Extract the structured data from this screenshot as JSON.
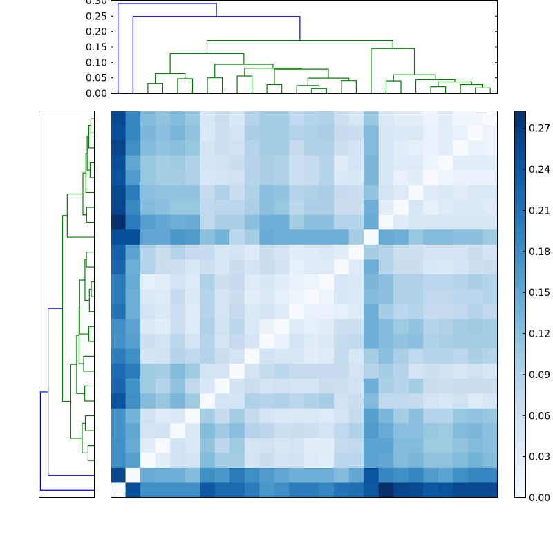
{
  "chart_data": {
    "type": "heatmap",
    "title": "",
    "description_kind": "clustered distance heatmap with dendrograms",
    "colormap": "Blues",
    "vmin": 0.0,
    "vmax": 0.283,
    "colorbar": {
      "ticks": [
        0.0,
        0.03,
        0.06,
        0.09,
        0.12,
        0.15,
        0.18,
        0.21,
        0.24,
        0.27
      ],
      "tick_labels": [
        "0.00",
        "0.03",
        "0.06",
        "0.09",
        "0.12",
        "0.15",
        "0.18",
        "0.21",
        "0.24",
        "0.27"
      ]
    },
    "top_dendrogram": {
      "ylim": [
        0.0,
        0.3
      ],
      "ticks": [
        0.0,
        0.05,
        0.1,
        0.15,
        0.2,
        0.25,
        0.3
      ],
      "tick_labels": [
        "0.00",
        "0.05",
        "0.10",
        "0.15",
        "0.20",
        "0.25",
        "0.30"
      ]
    },
    "dendrogram": {
      "n_leaves": 26,
      "color_threshold": 0.2,
      "below_color": "#008000",
      "above_color": "#0000ff",
      "linkage": [
        [
          24,
          25,
          0.017
        ],
        [
          23,
          26,
          0.028
        ],
        [
          21,
          22,
          0.021
        ],
        [
          28,
          27,
          0.037
        ],
        [
          20,
          29,
          0.044
        ],
        [
          18,
          19,
          0.04
        ],
        [
          31,
          30,
          0.06
        ],
        [
          17,
          32,
          0.145
        ],
        [
          13,
          14,
          0.015
        ],
        [
          12,
          34,
          0.025
        ],
        [
          15,
          16,
          0.041
        ],
        [
          35,
          36,
          0.049
        ],
        [
          10,
          11,
          0.028
        ],
        [
          38,
          37,
          0.078
        ],
        [
          8,
          9,
          0.056
        ],
        [
          40,
          39,
          0.081
        ],
        [
          6,
          7,
          0.05
        ],
        [
          42,
          41,
          0.094
        ],
        [
          2,
          3,
          0.032
        ],
        [
          4,
          5,
          0.047
        ],
        [
          44,
          45,
          0.064
        ],
        [
          46,
          43,
          0.129
        ],
        [
          47,
          33,
          0.171
        ],
        [
          1,
          48,
          0.249
        ],
        [
          0,
          49,
          0.291
        ]
      ]
    },
    "matrix_rows_top_to_bottom": [
      [
        0.255,
        0.19,
        0.125,
        0.115,
        0.125,
        0.11,
        0.045,
        0.065,
        0.045,
        0.085,
        0.1,
        0.1,
        0.075,
        0.085,
        0.09,
        0.06,
        0.045,
        0.11,
        0.04,
        0.03,
        0.03,
        0.015,
        0.03,
        0.012,
        0.012,
        0
      ],
      [
        0.25,
        0.19,
        0.13,
        0.12,
        0.13,
        0.115,
        0.04,
        0.06,
        0.05,
        0.095,
        0.1,
        0.1,
        0.085,
        0.09,
        0.095,
        0.07,
        0.065,
        0.125,
        0.045,
        0.04,
        0.04,
        0.02,
        0.03,
        0.02,
        0,
        0.015
      ],
      [
        0.26,
        0.18,
        0.125,
        0.115,
        0.12,
        0.11,
        0.05,
        0.06,
        0.055,
        0.085,
        0.1,
        0.1,
        0.07,
        0.09,
        0.09,
        0.06,
        0.05,
        0.125,
        0.045,
        0.03,
        0.025,
        0.02,
        0.03,
        0,
        0.02,
        0.015
      ],
      [
        0.25,
        0.15,
        0.11,
        0.1,
        0.105,
        0.09,
        0.05,
        0.055,
        0.065,
        0.085,
        0.095,
        0.09,
        0.06,
        0.07,
        0.085,
        0.035,
        0.05,
        0.13,
        0.045,
        0.035,
        0.035,
        0.015,
        0,
        0.03,
        0.03,
        0.03
      ],
      [
        0.245,
        0.165,
        0.11,
        0.1,
        0.1,
        0.09,
        0.045,
        0.05,
        0.055,
        0.085,
        0.095,
        0.09,
        0.06,
        0.07,
        0.085,
        0.04,
        0.045,
        0.13,
        0.045,
        0.02,
        0.03,
        0,
        0.015,
        0.02,
        0.02,
        0.02
      ],
      [
        0.255,
        0.2,
        0.12,
        0.115,
        0.115,
        0.115,
        0.07,
        0.09,
        0.065,
        0.09,
        0.12,
        0.115,
        0.085,
        0.09,
        0.095,
        0.07,
        0.065,
        0.115,
        0.05,
        0.035,
        0,
        0.035,
        0.04,
        0.03,
        0.04,
        0.04
      ],
      [
        0.26,
        0.185,
        0.125,
        0.12,
        0.11,
        0.11,
        0.075,
        0.08,
        0.08,
        0.095,
        0.12,
        0.11,
        0.08,
        0.095,
        0.095,
        0.065,
        0.065,
        0.14,
        0.03,
        0,
        0.045,
        0.025,
        0.035,
        0.04,
        0.04,
        0.035
      ],
      [
        0.283,
        0.2,
        0.16,
        0.15,
        0.14,
        0.145,
        0.075,
        0.095,
        0.095,
        0.12,
        0.14,
        0.14,
        0.1,
        0.12,
        0.12,
        0.085,
        0.085,
        0.145,
        0,
        0.035,
        0.045,
        0.045,
        0.045,
        0.045,
        0.045,
        0.045
      ],
      [
        0.25,
        0.25,
        0.15,
        0.15,
        0.17,
        0.165,
        0.12,
        0.135,
        0.08,
        0.1,
        0.145,
        0.14,
        0.14,
        0.14,
        0.14,
        0.14,
        0.1,
        0,
        0.145,
        0.14,
        0.11,
        0.125,
        0.125,
        0.12,
        0.12,
        0.105
      ],
      [
        0.23,
        0.155,
        0.085,
        0.065,
        0.085,
        0.07,
        0.07,
        0.045,
        0.05,
        0.035,
        0.065,
        0.05,
        0.03,
        0.035,
        0.04,
        0.03,
        0,
        0.1,
        0.085,
        0.06,
        0.06,
        0.05,
        0.05,
        0.05,
        0.065,
        0.05
      ],
      [
        0.225,
        0.14,
        0.085,
        0.065,
        0.06,
        0.045,
        0.06,
        0.045,
        0.065,
        0.05,
        0.065,
        0.055,
        0.025,
        0.035,
        0.035,
        0,
        0.035,
        0.14,
        0.085,
        0.065,
        0.065,
        0.045,
        0.04,
        0.05,
        0.06,
        0.065
      ],
      [
        0.2,
        0.145,
        0.025,
        0.03,
        0.05,
        0.035,
        0.09,
        0.06,
        0.07,
        0.035,
        0.045,
        0.03,
        0.02,
        0.015,
        0,
        0.045,
        0.04,
        0.13,
        0.12,
        0.09,
        0.09,
        0.08,
        0.08,
        0.085,
        0.095,
        0.085
      ],
      [
        0.2,
        0.14,
        0.04,
        0.035,
        0.07,
        0.04,
        0.085,
        0.05,
        0.065,
        0.03,
        0.04,
        0.025,
        0.015,
        0,
        0.015,
        0.045,
        0.04,
        0.125,
        0.12,
        0.09,
        0.09,
        0.075,
        0.075,
        0.08,
        0.08,
        0.085
      ],
      [
        0.21,
        0.14,
        0.05,
        0.04,
        0.06,
        0.035,
        0.085,
        0.05,
        0.07,
        0.04,
        0.05,
        0.035,
        0,
        0.02,
        0.02,
        0.025,
        0.035,
        0.14,
        0.1,
        0.08,
        0.085,
        0.07,
        0.07,
        0.075,
        0.085,
        0.075
      ],
      [
        0.18,
        0.155,
        0.04,
        0.03,
        0.06,
        0.035,
        0.09,
        0.055,
        0.08,
        0.04,
        0.02,
        0,
        0.035,
        0.025,
        0.03,
        0.06,
        0.06,
        0.14,
        0.125,
        0.105,
        0.115,
        0.085,
        0.09,
        0.1,
        0.105,
        0.1
      ],
      [
        0.175,
        0.16,
        0.06,
        0.05,
        0.08,
        0.05,
        0.085,
        0.05,
        0.07,
        0.05,
        0,
        0.02,
        0.05,
        0.035,
        0.04,
        0.07,
        0.075,
        0.14,
        0.125,
        0.115,
        0.12,
        0.09,
        0.095,
        0.1,
        0.1,
        0.1
      ],
      [
        0.2,
        0.18,
        0.05,
        0.055,
        0.085,
        0.075,
        0.085,
        0.065,
        0.05,
        0,
        0.055,
        0.045,
        0.045,
        0.03,
        0.035,
        0.07,
        0.045,
        0.1,
        0.12,
        0.095,
        0.075,
        0.085,
        0.085,
        0.08,
        0.095,
        0.085
      ],
      [
        0.22,
        0.2,
        0.105,
        0.1,
        0.125,
        0.105,
        0.05,
        0.05,
        0,
        0.05,
        0.07,
        0.08,
        0.07,
        0.07,
        0.07,
        0.07,
        0.05,
        0.085,
        0.1,
        0.085,
        0.05,
        0.06,
        0.055,
        0.045,
        0.055,
        0.045
      ],
      [
        0.225,
        0.175,
        0.105,
        0.085,
        0.115,
        0.075,
        0.045,
        0,
        0.055,
        0.065,
        0.05,
        0.055,
        0.05,
        0.05,
        0.065,
        0.06,
        0.055,
        0.14,
        0.095,
        0.085,
        0.1,
        0.065,
        0.06,
        0.065,
        0.065,
        0.065
      ],
      [
        0.245,
        0.18,
        0.125,
        0.11,
        0.13,
        0.105,
        0,
        0.05,
        0.05,
        0.09,
        0.085,
        0.09,
        0.08,
        0.09,
        0.1,
        0.055,
        0.065,
        0.125,
        0.075,
        0.075,
        0.07,
        0.05,
        0.045,
        0.055,
        0.035,
        0.045
      ],
      [
        0.175,
        0.135,
        0.055,
        0.035,
        0.04,
        0,
        0.1,
        0.07,
        0.1,
        0.07,
        0.05,
        0.04,
        0.04,
        0.04,
        0.035,
        0.05,
        0.07,
        0.16,
        0.13,
        0.1,
        0.12,
        0.085,
        0.085,
        0.11,
        0.115,
        0.11
      ],
      [
        0.175,
        0.15,
        0.05,
        0.055,
        0,
        0.04,
        0.125,
        0.105,
        0.12,
        0.085,
        0.08,
        0.06,
        0.065,
        0.06,
        0.05,
        0.075,
        0.09,
        0.165,
        0.145,
        0.12,
        0.12,
        0.11,
        0.105,
        0.125,
        0.13,
        0.12
      ],
      [
        0.18,
        0.145,
        0.03,
        0,
        0.055,
        0.04,
        0.115,
        0.08,
        0.105,
        0.05,
        0.055,
        0.045,
        0.05,
        0.03,
        0.03,
        0.07,
        0.075,
        0.155,
        0.155,
        0.125,
        0.125,
        0.105,
        0.105,
        0.115,
        0.125,
        0.12
      ],
      [
        0.18,
        0.16,
        0,
        0.03,
        0.055,
        0.05,
        0.125,
        0.1,
        0.1,
        0.05,
        0.065,
        0.05,
        0.055,
        0.035,
        0.03,
        0.08,
        0.08,
        0.155,
        0.15,
        0.125,
        0.13,
        0.115,
        0.115,
        0.125,
        0.135,
        0.125
      ],
      [
        0.26,
        0,
        0.145,
        0.14,
        0.14,
        0.125,
        0.18,
        0.17,
        0.2,
        0.18,
        0.165,
        0.15,
        0.14,
        0.14,
        0.14,
        0.125,
        0.15,
        0.245,
        0.19,
        0.18,
        0.19,
        0.165,
        0.155,
        0.18,
        0.19,
        0.19
      ],
      [
        0,
        0.25,
        0.18,
        0.18,
        0.18,
        0.18,
        0.24,
        0.22,
        0.22,
        0.2,
        0.17,
        0.18,
        0.2,
        0.2,
        0.19,
        0.21,
        0.215,
        0.24,
        0.283,
        0.26,
        0.255,
        0.24,
        0.245,
        0.255,
        0.255,
        0.255
      ]
    ]
  }
}
